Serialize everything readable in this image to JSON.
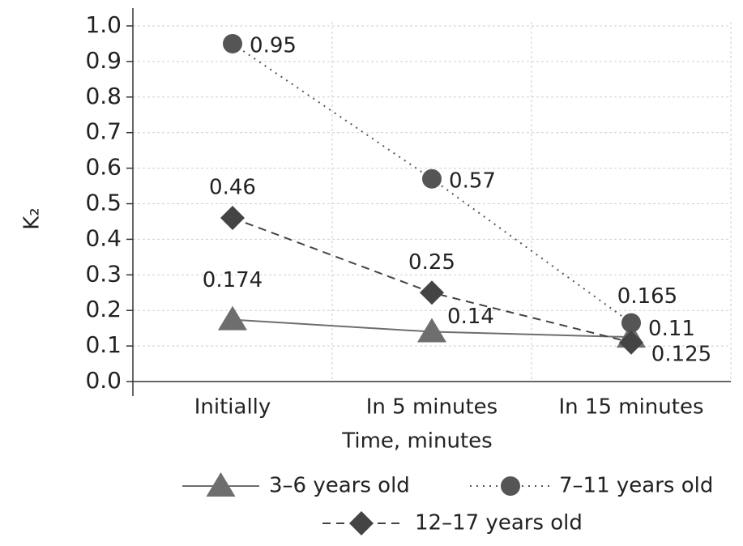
{
  "chart_data": {
    "type": "line",
    "ylabel": "K₂",
    "xlabel": "Time, minutes",
    "categories": [
      "Initially",
      "In 5 minutes",
      "In 15 minutes"
    ],
    "series": [
      {
        "name": "3–6 years old",
        "color": "#6e6e6e",
        "marker": "triangle",
        "dash": "solid",
        "values": [
          0.174,
          0.14,
          0.125
        ]
      },
      {
        "name": "7–11 years old",
        "color": "#555555",
        "marker": "circle",
        "dash": "dotted",
        "values": [
          0.95,
          0.57,
          0.165
        ]
      },
      {
        "name": "12–17 years old",
        "color": "#444444",
        "marker": "diamond",
        "dash": "dashed",
        "values": [
          0.46,
          0.25,
          0.11
        ]
      }
    ],
    "ylim": [
      0,
      1
    ],
    "yticks": [
      {
        "value": 0,
        "label": "0.0"
      },
      0.1,
      0.2,
      0.3,
      0.4,
      0.5,
      0.6,
      0.7,
      0.8,
      0.9,
      {
        "value": 1,
        "label": "1.0"
      }
    ],
    "grid": true,
    "legend": "bottom"
  }
}
